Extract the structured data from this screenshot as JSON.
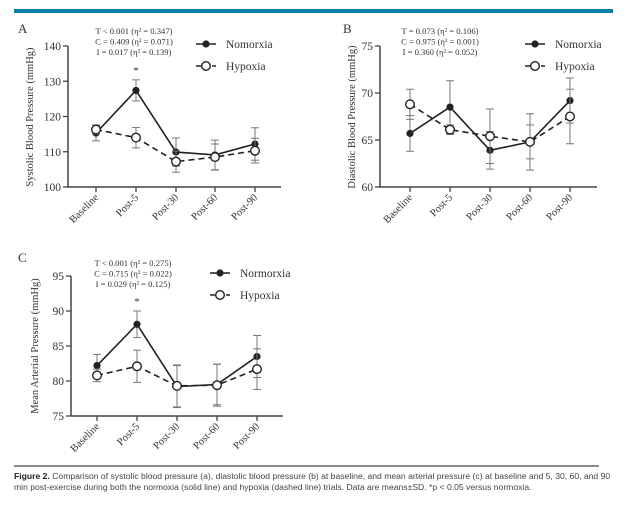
{
  "chart_data": [
    {
      "type": "line",
      "panel_label": "A",
      "ylabel": "Systolic Blood Pressure (mmHg)",
      "ylim": [
        100,
        140
      ],
      "yticks": [
        100,
        110,
        120,
        130,
        140
      ],
      "categories": [
        "Baseline",
        "Post-5",
        "Post-30",
        "Post-60",
        "Post-90"
      ],
      "stats": [
        "T < 0.001 (η² = 0.347)",
        "C = 0.409 (η² = 0.071)",
        "I = 0.017 (η² = 0.139)"
      ],
      "significance": [
        {
          "category": "Post-5",
          "mark": "*"
        }
      ],
      "legend": "top-right",
      "series": [
        {
          "name": "Nomorxia",
          "style": "solid-filled",
          "values": [
            115.3,
            127.4,
            109.9,
            109.1,
            112.2
          ],
          "sd": [
            2.2,
            3.0,
            4.0,
            4.2,
            4.6
          ]
        },
        {
          "name": "Hypoxia",
          "style": "dashed-open",
          "values": [
            116.3,
            114.0,
            107.2,
            108.5,
            110.3
          ],
          "sd": [
            1.3,
            2.9,
            3.0,
            3.7,
            3.5
          ]
        }
      ]
    },
    {
      "type": "line",
      "panel_label": "B",
      "ylabel": "Diastolic Blood Pressure (mmHg)",
      "ylim": [
        60,
        75
      ],
      "yticks": [
        60,
        65,
        70,
        75
      ],
      "categories": [
        "Baseline",
        "Post-5",
        "Post-30",
        "Post-60",
        "Post-90"
      ],
      "stats": [
        "T = 0.073 (η² = 0.106)",
        "C = 0.975 (η² = 0.001)",
        "I = 0.360 (η² = 0.052)"
      ],
      "significance": [],
      "legend": "top-right",
      "series": [
        {
          "name": "Nomorxia",
          "style": "solid-filled",
          "values": [
            65.7,
            68.5,
            63.9,
            64.8,
            69.2
          ],
          "sd": [
            1.9,
            2.8,
            2.0,
            3.0,
            2.4
          ]
        },
        {
          "name": "Hypoxia",
          "style": "dashed-open",
          "values": [
            68.8,
            66.1,
            65.4,
            64.8,
            67.5
          ],
          "sd": [
            1.6,
            0.5,
            2.9,
            1.8,
            2.9
          ]
        }
      ]
    },
    {
      "type": "line",
      "panel_label": "C",
      "ylabel": "Mean Arterial Pressure (mmHg)",
      "ylim": [
        75,
        95
      ],
      "yticks": [
        75,
        80,
        85,
        90,
        95
      ],
      "categories": [
        "Baseline",
        "Post-5",
        "Post-30",
        "Post-60",
        "Post-90"
      ],
      "stats": [
        "T < 0.001 (η² = 0.275)",
        "C = 0.715 (η² = 0.022)",
        "I = 0.029 (η² = 0.125)"
      ],
      "significance": [
        {
          "category": "Post-5",
          "mark": "*"
        }
      ],
      "legend": "top-right",
      "series": [
        {
          "name": "Normorxia",
          "style": "solid-filled",
          "values": [
            82.2,
            88.1,
            79.2,
            79.5,
            83.5
          ],
          "sd": [
            1.6,
            1.9,
            3.0,
            2.9,
            3.0
          ]
        },
        {
          "name": "Hypoxia",
          "style": "dashed-open",
          "values": [
            80.8,
            82.1,
            79.3,
            79.4,
            81.7
          ],
          "sd": [
            0.9,
            2.3,
            3.0,
            3.0,
            2.9
          ]
        }
      ]
    }
  ],
  "caption": {
    "label": "Figure 2.",
    "text": " Comparison of systolic blood pressure (a), diastolic blood pressure (b) at baseline, and mean arterial pressure (c) at baseline and 5, 30, 60, and 90 min post-exercise during both the normoxia (solid line) and hypoxia (dashed line) trials. Data are means±SD. *p < 0.05 versus normoxia."
  }
}
